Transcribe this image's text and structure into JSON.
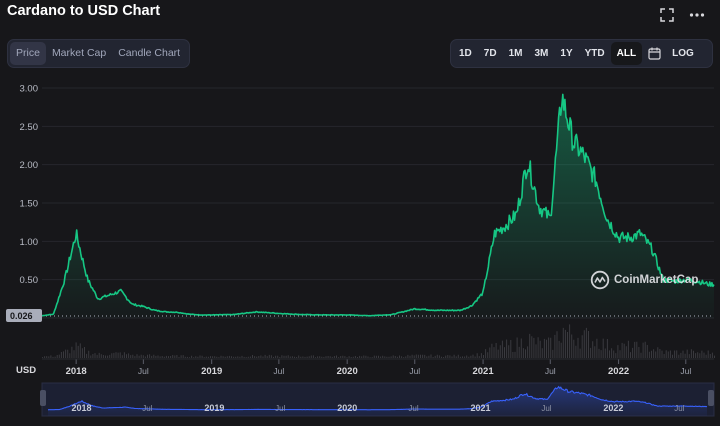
{
  "header": {
    "title": "Cardano to USD Chart"
  },
  "icons": {
    "expand": "fullscreen-icon",
    "more": "more-options-icon",
    "calendar": "calendar-icon",
    "logo": "coinmarketcap-logo-icon"
  },
  "tabs": [
    {
      "label": "Price",
      "active": true
    },
    {
      "label": "Market Cap",
      "active": false
    },
    {
      "label": "Candle Chart",
      "active": false
    }
  ],
  "ranges": [
    {
      "label": "1D",
      "active": false
    },
    {
      "label": "7D",
      "active": false
    },
    {
      "label": "1M",
      "active": false
    },
    {
      "label": "3M",
      "active": false
    },
    {
      "label": "1Y",
      "active": false
    },
    {
      "label": "YTD",
      "active": false
    },
    {
      "label": "ALL",
      "active": true
    }
  ],
  "log_label": "LOG",
  "watermark": "CoinMarketCap",
  "colors": {
    "line": "#16c784",
    "navigator": "#3861fb",
    "background": "#17171a"
  },
  "chart_data": {
    "type": "area",
    "currency_label": "USD",
    "y_ticks": [
      "3.00",
      "2.50",
      "2.00",
      "1.50",
      "1.00",
      "0.50"
    ],
    "ylim": [
      0,
      3.0
    ],
    "reference_value": "0.026",
    "x_ticks": [
      "2018",
      "Jul",
      "2019",
      "Jul",
      "2020",
      "Jul",
      "2021",
      "Jul",
      "2022",
      "Jul"
    ],
    "series": [
      {
        "x": [
          "2017-10",
          "2017-11",
          "2017-12",
          "2018-01",
          "2018-02",
          "2018-03",
          "2018-04",
          "2018-05",
          "2018-06",
          "2018-07",
          "2018-08",
          "2018-09",
          "2018-10",
          "2018-11",
          "2018-12",
          "2019-01",
          "2019-03",
          "2019-05",
          "2019-07",
          "2019-09",
          "2019-11",
          "2020-01",
          "2020-03",
          "2020-05",
          "2020-07",
          "2020-09",
          "2020-11",
          "2020-12",
          "2021-01",
          "2021-02",
          "2021-03",
          "2021-04",
          "2021-05",
          "2021-06",
          "2021-07",
          "2021-08",
          "2021-09",
          "2021-10",
          "2021-11",
          "2021-12",
          "2022-01",
          "2022-02",
          "2022-03",
          "2022-04",
          "2022-05",
          "2022-06",
          "2022-07",
          "2022-08",
          "2022-09"
        ],
        "values": [
          0.03,
          0.05,
          0.5,
          1.1,
          0.5,
          0.25,
          0.3,
          0.35,
          0.18,
          0.15,
          0.1,
          0.08,
          0.075,
          0.05,
          0.04,
          0.04,
          0.045,
          0.08,
          0.06,
          0.045,
          0.04,
          0.04,
          0.03,
          0.045,
          0.12,
          0.1,
          0.1,
          0.16,
          0.33,
          1.1,
          1.2,
          1.35,
          2.05,
          1.45,
          1.3,
          2.9,
          2.3,
          2.1,
          1.8,
          1.3,
          1.05,
          1.05,
          1.1,
          0.9,
          0.5,
          0.48,
          0.5,
          0.48,
          0.44
        ]
      }
    ],
    "grid": true
  }
}
